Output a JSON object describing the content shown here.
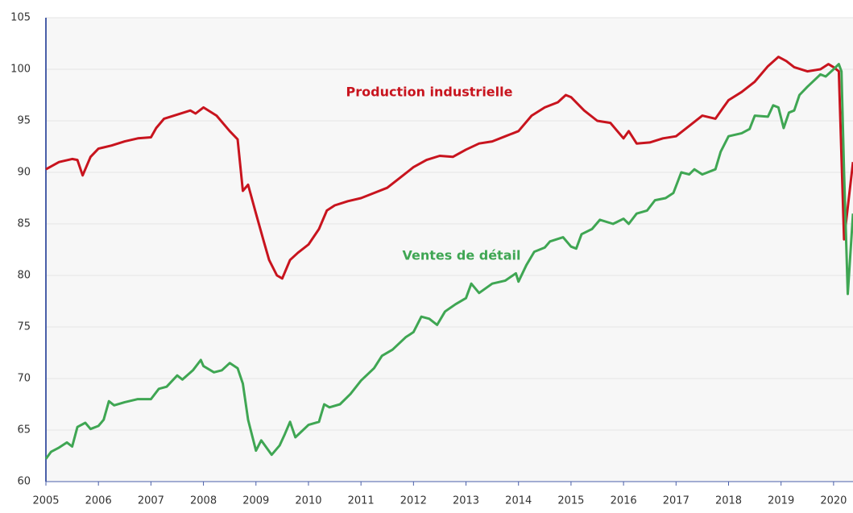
{
  "chart_data": {
    "type": "line",
    "xlim": [
      2005,
      2020.37
    ],
    "xticks": [
      2005,
      2006,
      2007,
      2008,
      2009,
      2010,
      2011,
      2012,
      2013,
      2014,
      2015,
      2016,
      2017,
      2018,
      2019,
      2020
    ],
    "ylim": [
      60,
      105
    ],
    "yticks": [
      60,
      65,
      70,
      75,
      80,
      85,
      90,
      95,
      100,
      105
    ],
    "grid": true,
    "series": [
      {
        "name": "Production industrielle",
        "color": "#c8141e",
        "x": [
          2005.0,
          2005.25,
          2005.5,
          2005.6,
          2005.7,
          2005.85,
          2006.0,
          2006.25,
          2006.5,
          2006.75,
          2007.0,
          2007.1,
          2007.25,
          2007.5,
          2007.75,
          2007.85,
          2008.0,
          2008.25,
          2008.5,
          2008.65,
          2008.75,
          2008.85,
          2009.0,
          2009.15,
          2009.25,
          2009.4,
          2009.5,
          2009.65,
          2009.8,
          2010.0,
          2010.2,
          2010.35,
          2010.5,
          2010.75,
          2011.0,
          2011.25,
          2011.5,
          2011.75,
          2012.0,
          2012.25,
          2012.5,
          2012.75,
          2013.0,
          2013.25,
          2013.5,
          2013.75,
          2014.0,
          2014.25,
          2014.5,
          2014.75,
          2014.9,
          2015.0,
          2015.25,
          2015.5,
          2015.75,
          2016.0,
          2016.1,
          2016.25,
          2016.5,
          2016.75,
          2017.0,
          2017.25,
          2017.5,
          2017.75,
          2017.9,
          2018.0,
          2018.25,
          2018.5,
          2018.75,
          2018.95,
          2019.1,
          2019.25,
          2019.5,
          2019.75,
          2019.9,
          2020.0,
          2020.1,
          2020.2,
          2020.37
        ],
        "values": [
          90.3,
          91.0,
          91.3,
          91.2,
          89.7,
          91.5,
          92.3,
          92.6,
          93.0,
          93.3,
          93.4,
          94.3,
          95.2,
          95.6,
          96.0,
          95.7,
          96.3,
          95.5,
          94.0,
          93.2,
          88.2,
          88.8,
          86.0,
          83.3,
          81.5,
          80.0,
          79.7,
          81.5,
          82.2,
          83.0,
          84.5,
          86.3,
          86.8,
          87.2,
          87.5,
          88.0,
          88.5,
          89.5,
          90.5,
          91.2,
          91.6,
          91.5,
          92.2,
          92.8,
          93.0,
          93.5,
          94.0,
          95.5,
          96.3,
          96.8,
          97.5,
          97.3,
          96.0,
          95.0,
          94.8,
          93.3,
          94.0,
          92.8,
          92.9,
          93.3,
          93.5,
          94.5,
          95.5,
          95.2,
          96.3,
          97.0,
          97.8,
          98.8,
          100.3,
          101.2,
          100.8,
          100.2,
          99.8,
          100.0,
          100.5,
          100.2,
          99.8,
          83.5,
          91.0
        ]
      },
      {
        "name": "Ventes de détail",
        "color": "#3fa653",
        "x": [
          2005.0,
          2005.1,
          2005.25,
          2005.4,
          2005.5,
          2005.6,
          2005.75,
          2005.85,
          2006.0,
          2006.1,
          2006.2,
          2006.3,
          2006.5,
          2006.75,
          2007.0,
          2007.15,
          2007.3,
          2007.5,
          2007.6,
          2007.8,
          2007.95,
          2008.0,
          2008.2,
          2008.35,
          2008.5,
          2008.65,
          2008.75,
          2008.85,
          2009.0,
          2009.1,
          2009.2,
          2009.3,
          2009.45,
          2009.55,
          2009.65,
          2009.75,
          2010.0,
          2010.2,
          2010.3,
          2010.4,
          2010.6,
          2010.8,
          2011.0,
          2011.25,
          2011.4,
          2011.6,
          2011.85,
          2012.0,
          2012.15,
          2012.3,
          2012.45,
          2012.6,
          2012.8,
          2013.0,
          2013.1,
          2013.25,
          2013.5,
          2013.75,
          2013.95,
          2014.0,
          2014.15,
          2014.3,
          2014.5,
          2014.6,
          2014.85,
          2015.0,
          2015.1,
          2015.2,
          2015.4,
          2015.55,
          2015.8,
          2016.0,
          2016.1,
          2016.25,
          2016.45,
          2016.6,
          2016.8,
          2016.95,
          2017.1,
          2017.25,
          2017.35,
          2017.5,
          2017.75,
          2017.85,
          2018.0,
          2018.25,
          2018.4,
          2018.5,
          2018.75,
          2018.85,
          2018.95,
          2019.05,
          2019.15,
          2019.25,
          2019.35,
          2019.5,
          2019.75,
          2019.85,
          2020.0,
          2020.1,
          2020.15,
          2020.2,
          2020.27,
          2020.37
        ],
        "values": [
          62.2,
          62.9,
          63.3,
          63.8,
          63.4,
          65.3,
          65.7,
          65.1,
          65.4,
          66.0,
          67.8,
          67.4,
          67.7,
          68.0,
          68.0,
          69.0,
          69.2,
          70.3,
          69.9,
          70.8,
          71.8,
          71.2,
          70.6,
          70.8,
          71.5,
          71.0,
          69.5,
          66.0,
          63.0,
          64.0,
          63.3,
          62.6,
          63.5,
          64.6,
          65.8,
          64.3,
          65.5,
          65.8,
          67.5,
          67.2,
          67.5,
          68.5,
          69.8,
          71.0,
          72.2,
          72.8,
          74.0,
          74.5,
          76.0,
          75.8,
          75.2,
          76.5,
          77.2,
          77.8,
          79.2,
          78.3,
          79.2,
          79.5,
          80.2,
          79.4,
          81.0,
          82.3,
          82.7,
          83.3,
          83.7,
          82.8,
          82.6,
          84.0,
          84.5,
          85.4,
          85.0,
          85.5,
          85.0,
          86.0,
          86.3,
          87.3,
          87.5,
          88.0,
          90.0,
          89.8,
          90.3,
          89.8,
          90.3,
          92.0,
          93.5,
          93.8,
          94.2,
          95.5,
          95.4,
          96.5,
          96.3,
          94.3,
          95.8,
          96.0,
          97.5,
          98.3,
          99.5,
          99.3,
          100.0,
          100.5,
          99.8,
          90.0,
          78.2,
          86.0
        ]
      }
    ]
  }
}
